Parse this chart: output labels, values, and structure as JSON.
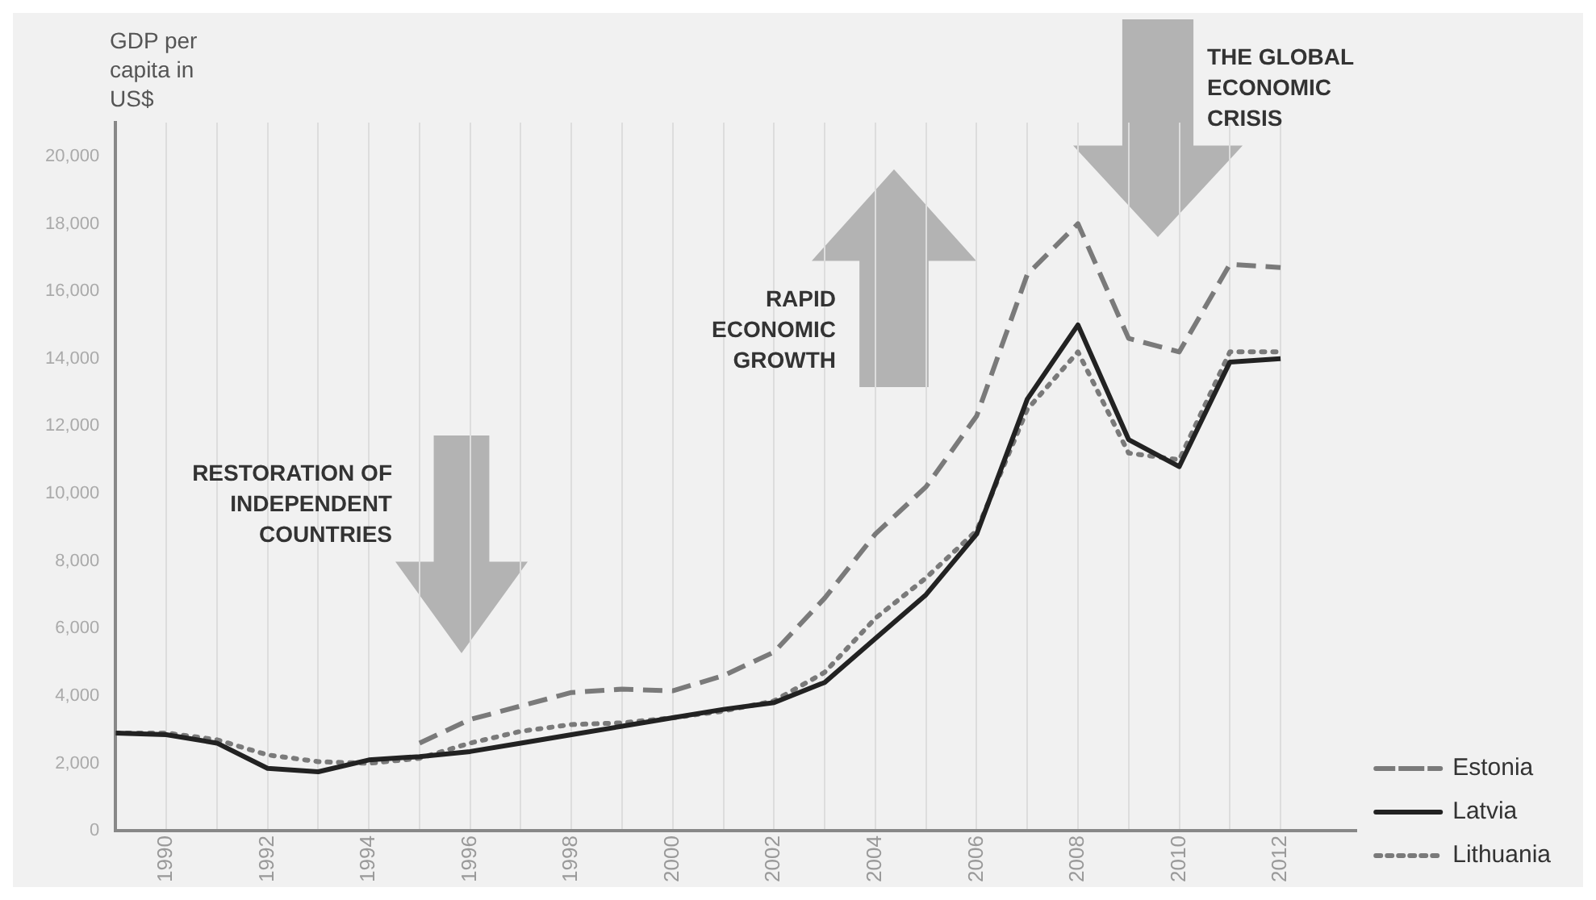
{
  "chart_data": {
    "type": "line",
    "ylabel": "GDP per capita in US$",
    "annotations": [
      "RESTORATION OF\nINDEPENDENT\nCOUNTRIES",
      "RAPID\nECONOMIC\nGROWTH",
      "THE GLOBAL\nECONOMIC\nCRISIS"
    ],
    "x": [
      1989,
      1990,
      1991,
      1992,
      1993,
      1994,
      1995,
      1996,
      1997,
      1998,
      1999,
      2000,
      2001,
      2002,
      2003,
      2004,
      2005,
      2006,
      2007,
      2008,
      2009,
      2010,
      2011,
      2012
    ],
    "series": [
      {
        "name": "Estonia",
        "color": "#7a7a7a",
        "line_style": "dashed",
        "values": [
          null,
          null,
          null,
          null,
          null,
          null,
          2600,
          3300,
          3700,
          4100,
          4200,
          4150,
          4600,
          5300,
          6900,
          8800,
          10200,
          12300,
          16500,
          18000,
          14600,
          14200,
          16800,
          16700
        ]
      },
      {
        "name": "Latvia",
        "color": "#222222",
        "line_style": "solid",
        "values": [
          2900,
          2850,
          2600,
          1850,
          1750,
          2100,
          2200,
          2350,
          2600,
          2850,
          3100,
          3350,
          3600,
          3800,
          4400,
          5700,
          7000,
          8800,
          12800,
          15000,
          11600,
          10800,
          13900,
          14000
        ]
      },
      {
        "name": "Lithuania",
        "color": "#7a7a7a",
        "line_style": "dotted",
        "values": [
          2900,
          2900,
          2700,
          2250,
          2050,
          2000,
          2150,
          2600,
          2950,
          3150,
          3200,
          3350,
          3550,
          3850,
          4700,
          6300,
          7500,
          8900,
          12500,
          14200,
          11200,
          11000,
          14200,
          14200
        ]
      }
    ],
    "xlim": [
      1989,
      2013.5
    ],
    "xticks": [
      {
        "value": 1989,
        "label": null
      },
      1990,
      {
        "value": 1991,
        "label": null
      },
      1992,
      {
        "value": 1993,
        "label": null
      },
      1994,
      {
        "value": 1995,
        "label": null
      },
      1996,
      {
        "value": 1997,
        "label": null
      },
      1998,
      {
        "value": 1999,
        "label": null
      },
      2000,
      {
        "value": 2001,
        "label": null
      },
      2002,
      {
        "value": 2003,
        "label": null
      },
      2004,
      {
        "value": 2005,
        "label": null
      },
      2006,
      {
        "value": 2007,
        "label": null
      },
      2008,
      {
        "value": 2009,
        "label": null
      },
      2010,
      {
        "value": 2011,
        "label": null
      },
      2012
    ],
    "ylim": [
      0,
      21000
    ],
    "yticks": [
      0,
      {
        "value": 2000,
        "label": "2,000"
      },
      {
        "value": 4000,
        "label": "4,000"
      },
      {
        "value": 6000,
        "label": "6,000"
      },
      {
        "value": 8000,
        "label": "8,000"
      },
      {
        "value": 10000,
        "label": "10,000"
      },
      {
        "value": 12000,
        "label": "12,000"
      },
      {
        "value": 14000,
        "label": "14,000"
      },
      {
        "value": 16000,
        "label": "16,000"
      },
      {
        "value": 18000,
        "label": "18,000"
      },
      {
        "value": 20000,
        "label": "20,000"
      }
    ],
    "grid": "x",
    "legend": "right",
    "marker": "none"
  }
}
